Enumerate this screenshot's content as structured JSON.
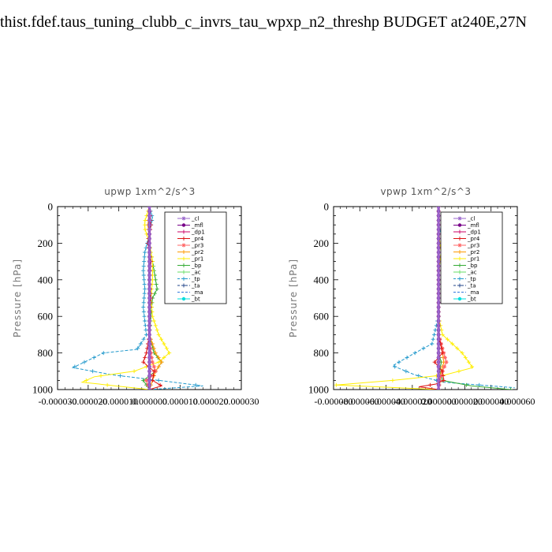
{
  "title": "thist.fdef.taus_tuning_clubb_c_invrs_tau_wpxp_n2_threshp  BUDGET at240E,27N",
  "legend_entries": [
    {
      "name": "_cl",
      "color": "#9966cc",
      "marker": "star"
    },
    {
      "name": "_mfl",
      "color": "#770088",
      "marker": "dot"
    },
    {
      "name": "_dp1",
      "color": "#cc0066",
      "marker": "plus"
    },
    {
      "name": "_pr4",
      "color": "#dd1111",
      "marker": "plus"
    },
    {
      "name": "_pr3",
      "color": "#ff6666",
      "marker": "star"
    },
    {
      "name": "_pr2",
      "color": "#ff9900",
      "marker": "plus"
    },
    {
      "name": "_pr1",
      "color": "#ffee00",
      "marker": "plus"
    },
    {
      "name": "_bp",
      "color": "#33aa33",
      "marker": "plus"
    },
    {
      "name": "_ac",
      "color": "#66dd66",
      "marker": "plus"
    },
    {
      "name": "_tp",
      "color": "#2299cc",
      "marker": "plus"
    },
    {
      "name": "_ta",
      "color": "#224488",
      "marker": "plus"
    },
    {
      "name": "_ma",
      "color": "#3377dd",
      "marker": "none"
    },
    {
      "name": "_bt",
      "color": "#00dddd",
      "marker": "dot"
    }
  ],
  "chart_data": [
    {
      "type": "line",
      "title": "upwp   1xm^2/s^3",
      "ylabel": "Pressure [hPa]",
      "ylim": [
        1000,
        0
      ],
      "yticks": [
        "0",
        "200",
        "400",
        "600",
        "800",
        "1000"
      ],
      "xlim": [
        -3e-05,
        3e-05
      ],
      "xticks": [
        "-0.000030",
        "-0.000020",
        "-0.000010",
        "0.000000",
        "0.000010",
        "0.000020",
        "0.000030"
      ],
      "series": [
        {
          "name": "_cl",
          "x": [
            0,
            0,
            0,
            0,
            0,
            0,
            0,
            0,
            0,
            0,
            0,
            0
          ],
          "y": [
            0,
            100,
            200,
            300,
            400,
            500,
            600,
            700,
            800,
            900,
            950,
            1000
          ]
        },
        {
          "name": "_mfl",
          "x": [
            0,
            0,
            0,
            0,
            0,
            0,
            0,
            0,
            0,
            0,
            0,
            0
          ],
          "y": [
            0,
            100,
            200,
            300,
            400,
            500,
            600,
            700,
            800,
            900,
            950,
            1000
          ]
        },
        {
          "name": "_dp1",
          "x": [
            0,
            0,
            0,
            0,
            0,
            0,
            0,
            0,
            0,
            0,
            0,
            0
          ],
          "y": [
            0,
            100,
            200,
            300,
            400,
            500,
            600,
            700,
            800,
            900,
            950,
            1000
          ]
        },
        {
          "name": "_pr4",
          "x": [
            0,
            5e-07,
            -5e-07,
            5e-07,
            0,
            5e-07,
            0,
            0,
            -1e-06,
            -2e-06,
            1.5e-06,
            1e-06,
            4e-06,
            0
          ],
          "y": [
            0,
            100,
            200,
            300,
            400,
            500,
            600,
            700,
            800,
            850,
            900,
            950,
            980,
            1000
          ]
        },
        {
          "name": "_pr3",
          "x": [
            0,
            0,
            0,
            0,
            0,
            0,
            0,
            0,
            5e-07,
            1e-06,
            2e-06,
            -1e-06,
            0
          ],
          "y": [
            0,
            100,
            200,
            300,
            400,
            500,
            600,
            700,
            800,
            850,
            900,
            950,
            1000
          ]
        },
        {
          "name": "_pr2",
          "x": [
            0,
            -5e-07,
            0,
            0,
            0,
            0,
            0,
            0,
            2e-06,
            4e-06,
            2e-06,
            1e-06,
            0
          ],
          "y": [
            0,
            100,
            200,
            300,
            400,
            500,
            600,
            700,
            800,
            850,
            900,
            950,
            1000
          ]
        },
        {
          "name": "_pr1",
          "x": [
            0,
            -1.5e-06,
            -1.5e-06,
            0,
            1e-06,
            1e-06,
            5e-07,
            1e-06,
            3e-06,
            6.5e-06,
            3e-06,
            -5e-06,
            -1.8e-05,
            -2.2e-05,
            0
          ],
          "y": [
            0,
            80,
            120,
            200,
            300,
            400,
            500,
            600,
            700,
            800,
            850,
            900,
            930,
            960,
            1000
          ]
        },
        {
          "name": "_bp",
          "x": [
            0,
            0,
            0,
            1e-06,
            2e-06,
            2.5e-06,
            1e-06,
            0,
            1.5e-06,
            4e-06,
            2e-06,
            -2e-06,
            0
          ],
          "y": [
            0,
            100,
            200,
            300,
            400,
            450,
            500,
            700,
            800,
            850,
            900,
            950,
            1000
          ]
        },
        {
          "name": "_ac",
          "x": [
            0,
            0,
            0,
            0,
            0,
            0,
            0,
            0,
            0,
            0,
            0,
            0
          ],
          "y": [
            0,
            100,
            200,
            300,
            400,
            500,
            600,
            700,
            800,
            900,
            950,
            1000
          ]
        },
        {
          "name": "_tp",
          "x": [
            0,
            1e-06,
            0,
            -1.5e-06,
            -2e-06,
            -1.5e-06,
            -2e-06,
            -1e-06,
            -4e-06,
            -1.5e-05,
            -2.5e-05,
            -1.2e-05,
            8e-06,
            1.75e-05,
            0
          ],
          "y": [
            0,
            60,
            150,
            250,
            350,
            450,
            550,
            700,
            780,
            800,
            880,
            920,
            960,
            980,
            1000
          ]
        },
        {
          "name": "_ta",
          "x": [
            0,
            0,
            0,
            0,
            0,
            0,
            0,
            0,
            0,
            0,
            0,
            0
          ],
          "y": [
            0,
            100,
            200,
            300,
            400,
            500,
            600,
            700,
            800,
            900,
            950,
            1000
          ]
        },
        {
          "name": "_ma",
          "x": [
            0,
            0,
            0,
            0,
            0,
            0,
            0,
            0,
            0,
            0,
            0,
            0
          ],
          "y": [
            0,
            100,
            200,
            300,
            400,
            500,
            600,
            700,
            800,
            900,
            950,
            1000
          ]
        },
        {
          "name": "_bt",
          "x": [
            0,
            0,
            0,
            0,
            0,
            0,
            0,
            0,
            0,
            0,
            0,
            0
          ],
          "y": [
            0,
            100,
            200,
            300,
            400,
            500,
            600,
            700,
            800,
            900,
            950,
            1000
          ]
        }
      ]
    },
    {
      "type": "line",
      "title": "vpwp   1xm^2/s^3",
      "ylabel": "Pressure [hPa]",
      "ylim": [
        1000,
        0
      ],
      "yticks": [
        "0",
        "200",
        "400",
        "600",
        "800",
        "1000"
      ],
      "xlim": [
        -8e-05,
        6e-05
      ],
      "xticks": [
        "-0.000080",
        "-0.000060",
        "-0.000040",
        "-0.000020",
        "0.000000",
        "0.000020",
        "0.000040",
        "0.000060"
      ],
      "series": [
        {
          "name": "_cl",
          "x": [
            0,
            0,
            0,
            0,
            0,
            0,
            0,
            0,
            0,
            0,
            0,
            0
          ],
          "y": [
            0,
            100,
            200,
            300,
            400,
            500,
            600,
            700,
            800,
            900,
            950,
            1000
          ]
        },
        {
          "name": "_mfl",
          "x": [
            0,
            0,
            0,
            0,
            0,
            0,
            0,
            0,
            0,
            0,
            0,
            0
          ],
          "y": [
            0,
            100,
            200,
            300,
            400,
            500,
            600,
            700,
            800,
            900,
            950,
            1000
          ]
        },
        {
          "name": "_dp1",
          "x": [
            0,
            0,
            0,
            0,
            0,
            0,
            0,
            0,
            0,
            0,
            0,
            0
          ],
          "y": [
            0,
            100,
            200,
            300,
            400,
            500,
            600,
            700,
            800,
            900,
            950,
            1000
          ]
        },
        {
          "name": "_pr4",
          "x": [
            0,
            0,
            0,
            0,
            0,
            0,
            0,
            0,
            3e-06,
            -3e-06,
            3e-06,
            4e-06,
            -2e-06,
            -1.5e-05,
            0
          ],
          "y": [
            0,
            100,
            200,
            300,
            400,
            500,
            600,
            700,
            800,
            850,
            900,
            950,
            970,
            985,
            1000
          ]
        },
        {
          "name": "_pr3",
          "x": [
            0,
            0,
            0,
            0,
            0,
            0,
            0,
            0,
            4e-06,
            6e-06,
            3e-06,
            1e-06,
            0
          ],
          "y": [
            0,
            100,
            200,
            300,
            400,
            500,
            600,
            700,
            800,
            850,
            900,
            950,
            1000
          ]
        },
        {
          "name": "_pr2",
          "x": [
            0,
            0,
            0,
            0,
            0,
            0,
            0,
            0,
            3e-06,
            4e-06,
            2e-06,
            1e-06,
            0
          ],
          "y": [
            0,
            100,
            200,
            300,
            400,
            500,
            600,
            700,
            800,
            850,
            900,
            950,
            1000
          ]
        },
        {
          "name": "_pr1",
          "x": [
            0,
            0,
            1e-06,
            2e-06,
            1e-06,
            0,
            0,
            0,
            3e-06,
            1.8e-05,
            2.6e-05,
            5e-06,
            -3.5e-05,
            -7.8e-05,
            0
          ],
          "y": [
            0,
            100,
            200,
            250,
            300,
            400,
            500,
            600,
            700,
            800,
            880,
            920,
            950,
            975,
            1000
          ]
        },
        {
          "name": "_bp",
          "x": [
            0,
            0,
            0,
            0,
            0,
            0,
            0,
            0,
            0,
            2e-06,
            1e-06,
            3e-06,
            2.5e-05,
            5.5e-05
          ],
          "y": [
            0,
            100,
            200,
            300,
            400,
            500,
            600,
            700,
            800,
            850,
            900,
            950,
            980,
            1000
          ]
        },
        {
          "name": "_ac",
          "x": [
            0,
            0,
            0,
            0,
            0,
            0,
            0,
            0,
            0,
            0,
            0,
            0
          ],
          "y": [
            0,
            100,
            200,
            300,
            400,
            500,
            600,
            700,
            800,
            900,
            950,
            1000
          ]
        },
        {
          "name": "_tp",
          "x": [
            0,
            0,
            2e-06,
            3e-06,
            1e-06,
            0,
            0,
            0,
            -5e-06,
            -1.8e-05,
            -3.5e-05,
            -1.8e-05,
            4e-06,
            5.8e-05
          ],
          "y": [
            0,
            100,
            150,
            220,
            300,
            400,
            500,
            600,
            750,
            800,
            870,
            920,
            960,
            990
          ]
        },
        {
          "name": "_ta",
          "x": [
            0,
            0,
            0,
            0,
            0,
            0,
            0,
            0,
            0,
            0,
            0,
            0
          ],
          "y": [
            0,
            100,
            200,
            300,
            400,
            500,
            600,
            700,
            800,
            900,
            950,
            1000
          ]
        },
        {
          "name": "_ma",
          "x": [
            0,
            0,
            0,
            0,
            0,
            0,
            0,
            0,
            0,
            0,
            0,
            0
          ],
          "y": [
            0,
            100,
            200,
            300,
            400,
            500,
            600,
            700,
            800,
            900,
            950,
            1000
          ]
        },
        {
          "name": "_bt",
          "x": [
            0,
            0,
            0,
            0,
            0,
            0,
            0,
            0,
            0,
            0,
            0,
            0
          ],
          "y": [
            0,
            100,
            200,
            300,
            400,
            500,
            600,
            700,
            800,
            900,
            950,
            1000
          ]
        }
      ]
    }
  ]
}
